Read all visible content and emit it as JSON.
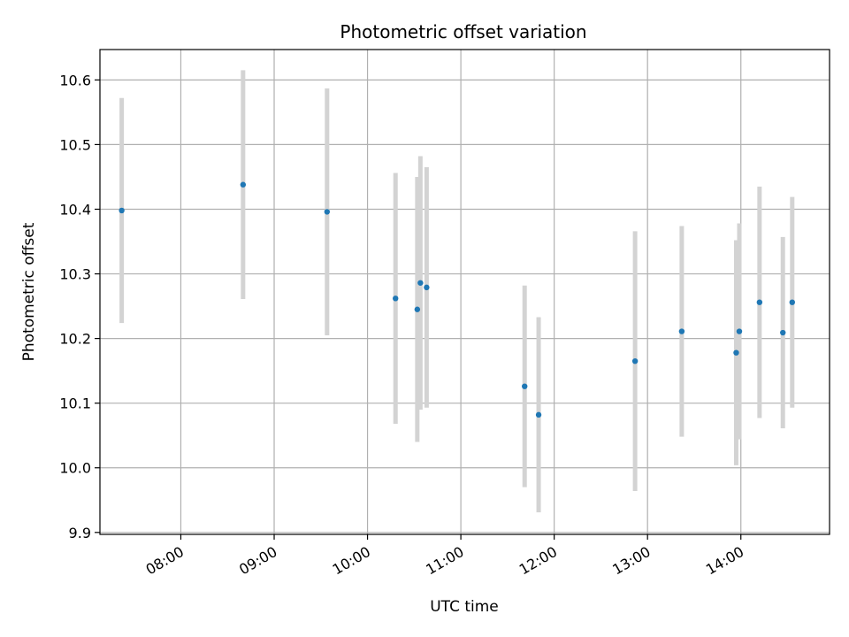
{
  "chart_data": {
    "type": "scatter",
    "title": "Photometric offset variation",
    "xlabel": "UTC time",
    "ylabel": "Photometric offset",
    "x_unit": "time of day (UTC)",
    "xlim": [
      "07:08",
      "14:57"
    ],
    "ylim": [
      9.897,
      10.647
    ],
    "grid": true,
    "x_ticks": [
      "08:00",
      "09:00",
      "10:00",
      "11:00",
      "12:00",
      "13:00",
      "14:00"
    ],
    "y_ticks": [
      9.9,
      10.0,
      10.1,
      10.2,
      10.3,
      10.4,
      10.5,
      10.6
    ],
    "y_tick_labels": [
      "9.9",
      "10.0",
      "10.1",
      "10.2",
      "10.3",
      "10.4",
      "10.5",
      "10.6"
    ],
    "colors": {
      "point": "#1f77b4",
      "errorbar": "#d3d3d3",
      "grid": "#b0b0b0"
    },
    "points": [
      {
        "x": "07:22",
        "y": 10.398,
        "err": 0.174
      },
      {
        "x": "08:40",
        "y": 10.438,
        "err": 0.177
      },
      {
        "x": "09:34",
        "y": 10.396,
        "err": 0.191
      },
      {
        "x": "10:18",
        "y": 10.262,
        "err": 0.194
      },
      {
        "x": "10:32",
        "y": 10.245,
        "err": 0.205
      },
      {
        "x": "10:34",
        "y": 10.286,
        "err": 0.196
      },
      {
        "x": "10:38",
        "y": 10.279,
        "err": 0.186
      },
      {
        "x": "11:41",
        "y": 10.126,
        "err": 0.156
      },
      {
        "x": "11:50",
        "y": 10.082,
        "err": 0.151
      },
      {
        "x": "12:52",
        "y": 10.165,
        "err": 0.201
      },
      {
        "x": "13:22",
        "y": 10.211,
        "err": 0.163
      },
      {
        "x": "13:57",
        "y": 10.178,
        "err": 0.174
      },
      {
        "x": "13:59",
        "y": 10.211,
        "err": 0.167
      },
      {
        "x": "14:12",
        "y": 10.256,
        "err": 0.179
      },
      {
        "x": "14:27",
        "y": 10.209,
        "err": 0.148
      },
      {
        "x": "14:33",
        "y": 10.256,
        "err": 0.163
      }
    ]
  }
}
